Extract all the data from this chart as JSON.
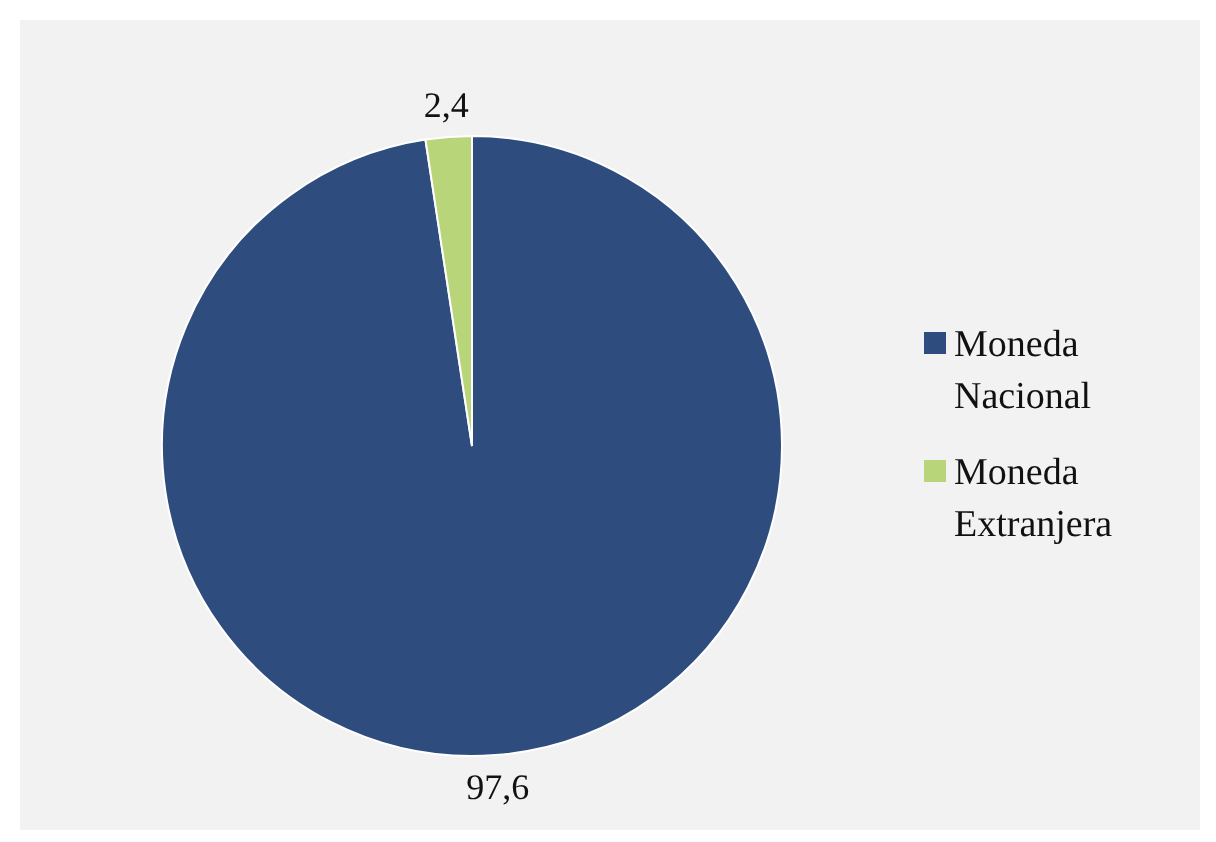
{
  "chart_data": {
    "type": "pie",
    "categories": [
      "Moneda Nacional",
      "Moneda Extranjera"
    ],
    "values": [
      97.6,
      2.4
    ],
    "colors": [
      "#2e4d7e",
      "#b9d57a"
    ],
    "value_labels": [
      "97,6",
      "2,4"
    ],
    "legend": "right"
  }
}
